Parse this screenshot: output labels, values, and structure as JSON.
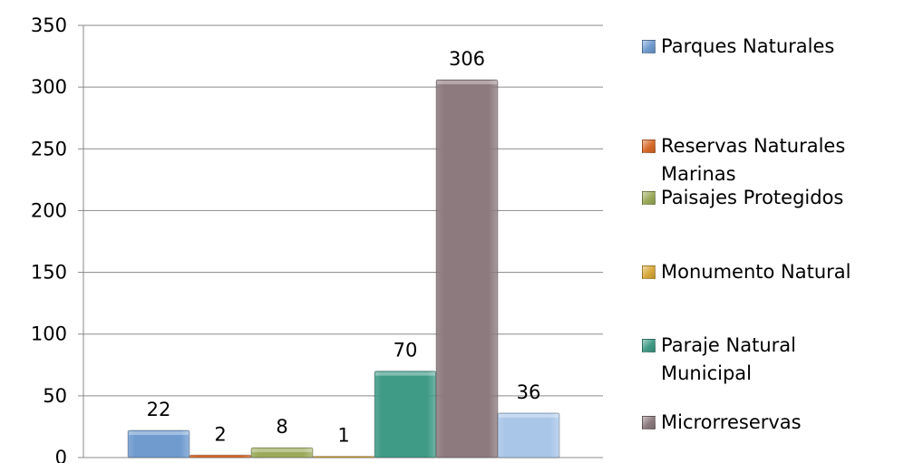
{
  "chart_data": {
    "type": "bar",
    "categories": [
      "Parques Naturales",
      "Reservas Naturales Marinas",
      "Paisajes Protegidos",
      "Monumento Natural",
      "Paraje Natural Municipal",
      "Microrreservas",
      ""
    ],
    "values": [
      22,
      2,
      8,
      1,
      70,
      306,
      36
    ],
    "data_labels": [
      "22",
      "2",
      "8",
      "1",
      "70",
      "306",
      "36"
    ],
    "colors": [
      "#6f9bcf",
      "#d86a2a",
      "#9aaa5a",
      "#d9a838",
      "#3f9a86",
      "#8c7a7e",
      "#a9c6e8"
    ],
    "ylim": [
      0,
      350
    ],
    "yticks": [
      "0",
      "50",
      "100",
      "150",
      "200",
      "250",
      "300",
      "350"
    ],
    "grid": true,
    "legend_position": "right",
    "title": "",
    "xlabel": "",
    "ylabel": ""
  },
  "legend": [
    {
      "label": "Parques Naturales",
      "color": "#6f9bcf"
    },
    {
      "label": "Reservas Naturales Marinas",
      "color": "#d86a2a"
    },
    {
      "label": "Paisajes Protegidos",
      "color": "#9aaa5a"
    },
    {
      "label": "Monumento Natural",
      "color": "#d9a838"
    },
    {
      "label": "Paraje Natural Municipal",
      "color": "#3f9a86"
    },
    {
      "label": "Microrreservas",
      "color": "#8c7a7e"
    }
  ]
}
